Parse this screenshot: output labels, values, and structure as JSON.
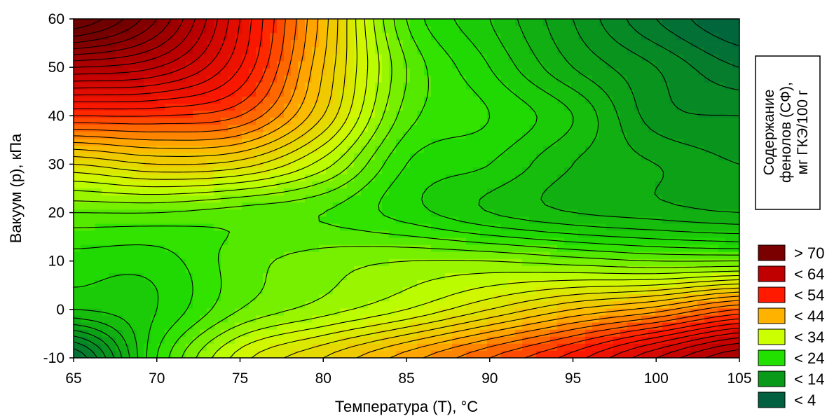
{
  "chart_data": {
    "type": "heatmap",
    "subtype": "contour",
    "xlabel": "Температура (Т), °С",
    "ylabel": "Вакуум (р), кПа",
    "x_ticks": [
      "65",
      "70",
      "75",
      "80",
      "85",
      "90",
      "95",
      "100",
      "105"
    ],
    "y_ticks": [
      "-10",
      "0",
      "10",
      "20",
      "30",
      "40",
      "50",
      "60"
    ],
    "xlim": [
      65,
      105
    ],
    "ylim": [
      -10,
      60
    ],
    "legend_title": [
      "Содержание",
      "фенолов (СФ),",
      "мг ГКЭ/100 г"
    ],
    "legend_position": "right",
    "legend": [
      {
        "label": "> 70",
        "color": "#7a0000"
      },
      {
        "label": "< 64",
        "color": "#c00000"
      },
      {
        "label": "< 54",
        "color": "#ff1a00"
      },
      {
        "label": "< 44",
        "color": "#ffb300"
      },
      {
        "label": "< 34",
        "color": "#ccff00"
      },
      {
        "label": "< 24",
        "color": "#22e000"
      },
      {
        "label": "< 14",
        "color": "#0a9a1a"
      },
      {
        "label": "< 4",
        "color": "#006040"
      }
    ],
    "level_step": 2,
    "value_range": [
      4,
      80
    ],
    "grid_x": [
      65,
      70,
      75,
      80,
      85,
      90,
      95,
      100,
      105
    ],
    "grid_y": [
      -10,
      0,
      10,
      20,
      30,
      40,
      50,
      60
    ],
    "grid_z": [
      [
        6,
        24,
        35,
        40,
        45,
        50,
        55,
        62,
        68
      ],
      [
        20,
        22,
        28,
        31,
        34,
        38,
        42,
        45,
        50
      ],
      [
        23,
        23,
        27,
        29,
        30,
        30,
        29,
        28,
        28
      ],
      [
        28,
        28,
        27,
        26,
        23,
        20,
        18,
        17,
        16
      ],
      [
        38,
        40,
        39,
        33,
        24,
        22,
        18,
        16,
        14
      ],
      [
        52,
        52,
        50,
        40,
        27,
        24,
        20,
        13,
        12
      ],
      [
        66,
        64,
        56,
        42,
        28,
        22,
        16,
        12,
        8
      ],
      [
        80,
        72,
        58,
        43,
        26,
        20,
        14,
        8,
        4
      ]
    ]
  }
}
